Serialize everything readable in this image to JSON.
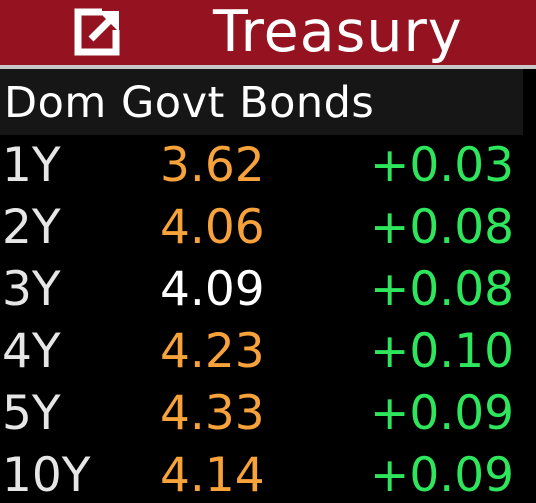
{
  "title": "Treasury",
  "header": "Dom Govt Bonds",
  "colors": {
    "title_bar": "#951321",
    "yield_up": "#f7a23a",
    "yield_neutral": "#ffffff",
    "change_positive": "#2ee65c",
    "tenor": "#e6e6e6"
  },
  "icons": {
    "popout": "popout-arrow-icon"
  },
  "rows": [
    {
      "tenor": "1Y",
      "yield": "3.62",
      "change": "+0.03",
      "yield_color": "#f7a23a"
    },
    {
      "tenor": "2Y",
      "yield": "4.06",
      "change": "+0.08",
      "yield_color": "#f7a23a"
    },
    {
      "tenor": "3Y",
      "yield": "4.09",
      "change": "+0.08",
      "yield_color": "#ffffff"
    },
    {
      "tenor": "4Y",
      "yield": "4.23",
      "change": "+0.10",
      "yield_color": "#f7a23a"
    },
    {
      "tenor": "5Y",
      "yield": "4.33",
      "change": "+0.09",
      "yield_color": "#f7a23a"
    },
    {
      "tenor": "10Y",
      "yield": "4.14",
      "change": "+0.09",
      "yield_color": "#f7a23a"
    }
  ]
}
